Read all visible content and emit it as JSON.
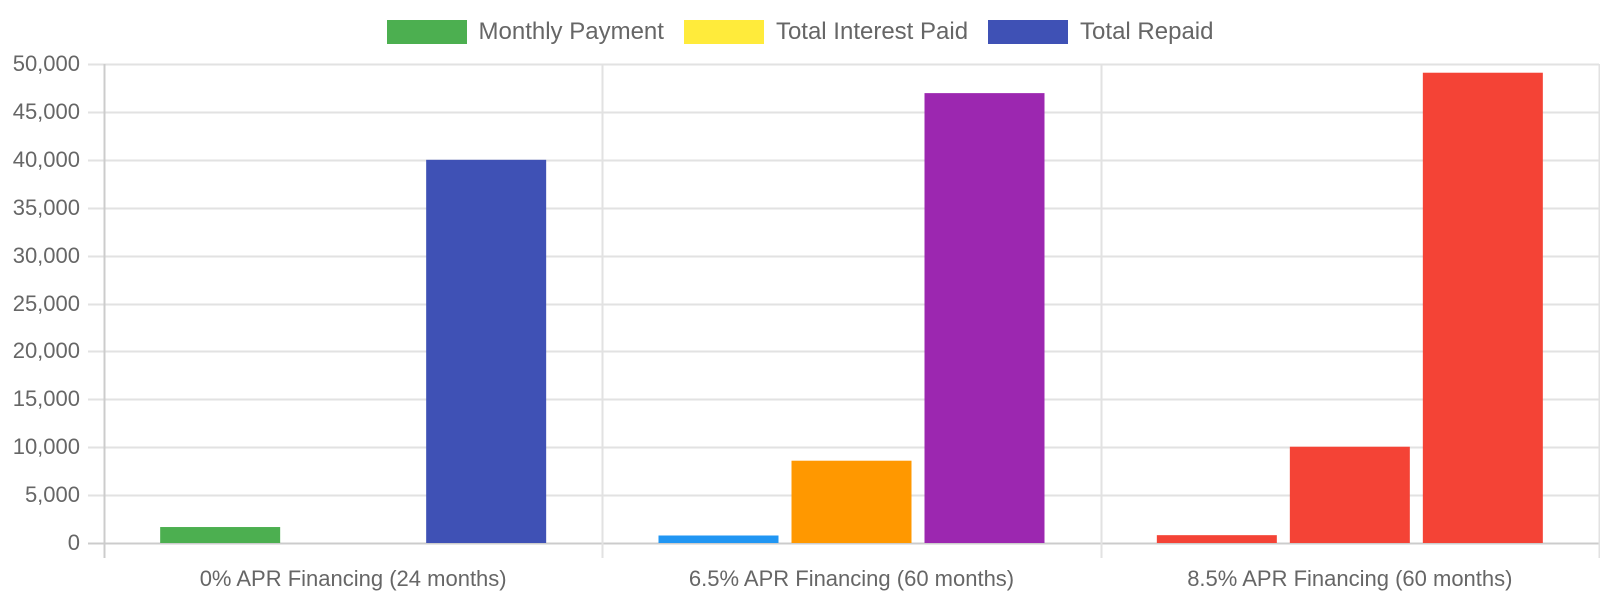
{
  "chart_data": {
    "type": "bar",
    "title": "",
    "xlabel": "",
    "ylabel": "",
    "categories": [
      "0% APR Financing (24 months)",
      "6.5% APR Financing (60 months)",
      "8.5% APR Financing (60 months)"
    ],
    "series": [
      {
        "name": "Monthly Payment",
        "legend_color": "#4caf50",
        "values": [
          1667,
          783,
          818
        ],
        "bar_colors": [
          "#4caf50",
          "#2196f3",
          "#f44336"
        ]
      },
      {
        "name": "Total Interest Paid",
        "legend_color": "#ffeb3b",
        "values": [
          0,
          8590,
          10050
        ],
        "bar_colors": [
          "#ffeb3b",
          "#ff9800",
          "#f44336"
        ]
      },
      {
        "name": "Total Repaid",
        "legend_color": "#3f51b5",
        "values": [
          40000,
          46960,
          49090
        ],
        "bar_colors": [
          "#3f51b5",
          "#9c27b0",
          "#f44336"
        ]
      }
    ],
    "ylim": [
      0,
      50000
    ],
    "yticks": [
      "0",
      "5,000",
      "10,000",
      "15,000",
      "20,000",
      "25,000",
      "30,000",
      "35,000",
      "40,000",
      "45,000",
      "50,000"
    ],
    "grid": true,
    "legend_position": "top"
  }
}
